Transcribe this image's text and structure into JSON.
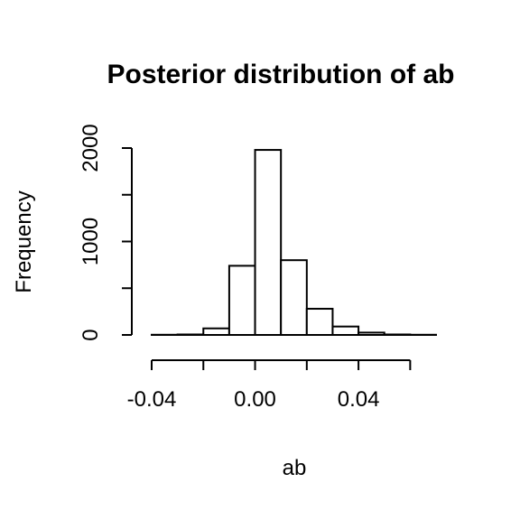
{
  "chart_data": {
    "type": "histogram",
    "title": "Posterior distribution of ab",
    "xlabel": "ab",
    "ylabel": "Frequency",
    "bin_edges": [
      -0.04,
      -0.03,
      -0.02,
      -0.01,
      0.0,
      0.01,
      0.02,
      0.03,
      0.04,
      0.05,
      0.06,
      0.07
    ],
    "counts": [
      2,
      5,
      70,
      740,
      1980,
      800,
      280,
      90,
      25,
      5,
      2
    ],
    "x_ticks": [
      -0.04,
      -0.02,
      0.0,
      0.02,
      0.04,
      0.06
    ],
    "x_tick_labels": [
      "-0.04",
      "",
      "0.00",
      "",
      "0.04",
      ""
    ],
    "y_ticks": [
      0,
      500,
      1000,
      1500,
      2000
    ],
    "y_tick_labels": [
      "0",
      "",
      "1000",
      "",
      "2000"
    ],
    "xlim": [
      -0.04,
      0.07
    ],
    "ylim": [
      0,
      2000
    ],
    "bar_fill": "#ffffff",
    "bar_stroke": "#000000"
  }
}
